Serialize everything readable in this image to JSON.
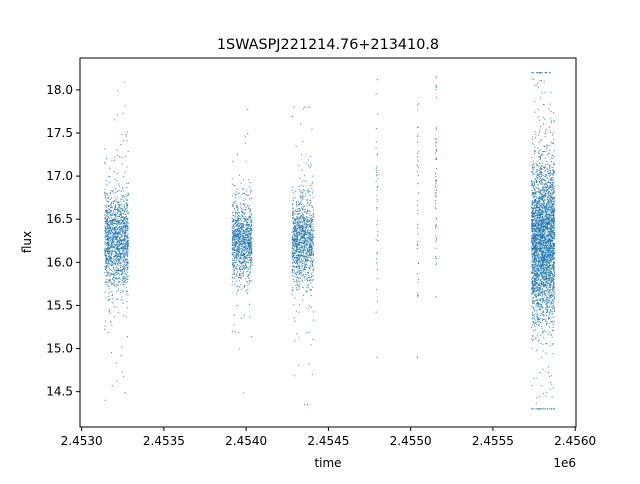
{
  "chart_data": {
    "type": "scatter",
    "title": "1SWASPJ221214.76+213410.8",
    "xlabel": "time",
    "ylabel": "flux",
    "x_offset_label": "1e6",
    "xlim": [
      2452990,
      2456005
    ],
    "ylim": [
      14.09,
      18.37
    ],
    "xticks": [
      2453000,
      2453500,
      2454000,
      2454500,
      2455000,
      2455500,
      2456000
    ],
    "xtick_labels": [
      "2.4530",
      "2.4535",
      "2.4540",
      "2.4545",
      "2.4550",
      "2.4555",
      "2.4560"
    ],
    "yticks": [
      14.5,
      15.0,
      15.5,
      16.0,
      16.5,
      17.0,
      17.5,
      18.0
    ],
    "ytick_labels": [
      "14.5",
      "15.0",
      "15.5",
      "16.0",
      "16.5",
      "17.0",
      "17.5",
      "18.0"
    ],
    "grid": false,
    "color": "#1f77b4",
    "clusters": [
      {
        "t_start": 2453140,
        "t_end": 2453285,
        "flux_mean": 16.25,
        "flux_sd": 0.28,
        "count": 1400,
        "flux_min": 14.4,
        "flux_max": 18.1
      },
      {
        "t_start": 2453915,
        "t_end": 2454035,
        "flux_mean": 16.25,
        "flux_sd": 0.22,
        "count": 1000,
        "flux_min": 14.45,
        "flux_max": 18.1
      },
      {
        "t_start": 2454280,
        "t_end": 2454410,
        "flux_mean": 16.25,
        "flux_sd": 0.25,
        "count": 1100,
        "flux_min": 14.35,
        "flux_max": 17.8
      },
      {
        "t_start": 2454790,
        "t_end": 2454800,
        "flux_mean": 16.5,
        "flux_sd": 0.8,
        "count": 40,
        "flux_min": 14.9,
        "flux_max": 18.2
      },
      {
        "t_start": 2455040,
        "t_end": 2455048,
        "flux_mean": 16.8,
        "flux_sd": 0.8,
        "count": 40,
        "flux_min": 14.9,
        "flux_max": 18.2
      },
      {
        "t_start": 2455150,
        "t_end": 2455158,
        "flux_mean": 17.0,
        "flux_sd": 0.6,
        "count": 60,
        "flux_min": 15.6,
        "flux_max": 18.15
      },
      {
        "t_start": 2455735,
        "t_end": 2455875,
        "flux_mean": 16.25,
        "flux_sd": 0.45,
        "count": 3200,
        "flux_min": 14.3,
        "flux_max": 18.2
      }
    ]
  }
}
